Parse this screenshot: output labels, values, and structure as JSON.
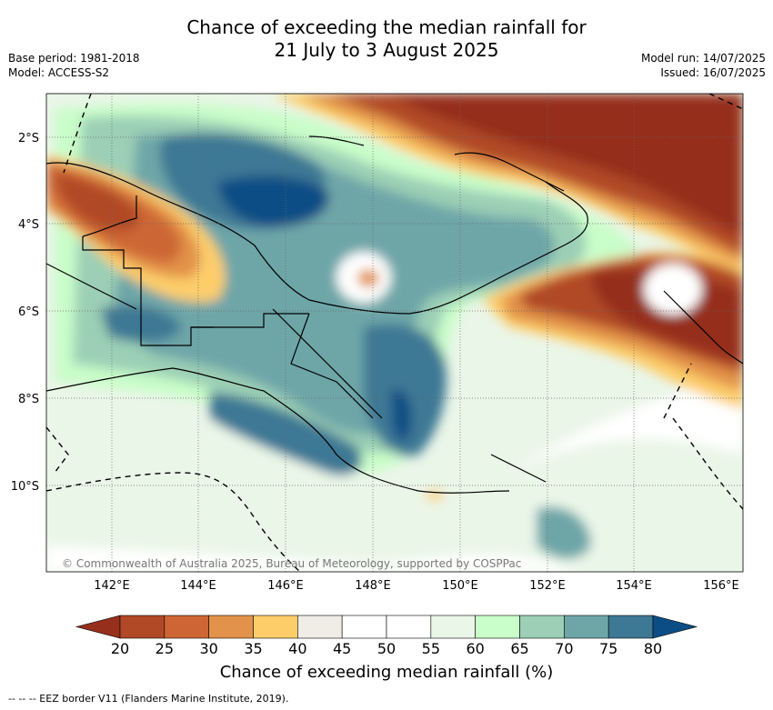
{
  "title": {
    "line1": "Chance of exceeding the median rainfall for",
    "line2": "21 July to 3 August 2025"
  },
  "meta": {
    "base_period": "Base period: 1981-2018",
    "model": "Model: ACCESS-S2",
    "model_run": "Model run: 14/07/2025",
    "issued": "Issued: 16/07/2025"
  },
  "axes": {
    "lat_labels": [
      "2°S",
      "4°S",
      "6°S",
      "8°S",
      "10°S"
    ],
    "lon_labels": [
      "142°E",
      "144°E",
      "146°E",
      "148°E",
      "150°E",
      "152°E",
      "154°E",
      "156°E"
    ]
  },
  "colorbar": {
    "ticks": [
      "20",
      "25",
      "30",
      "35",
      "40",
      "45",
      "50",
      "55",
      "60",
      "65",
      "70",
      "75",
      "80"
    ],
    "colors": [
      "#962f1c",
      "#b14826",
      "#cd6634",
      "#e2924a",
      "#fdcd6a",
      "#f0ece6",
      "#ffffff",
      "#ffffff",
      "#eaf6e8",
      "#c9fdc9",
      "#9ccfb5",
      "#6ea6a8",
      "#3d7894",
      "#0d4d85"
    ],
    "label": "Chance of exceeding median rainfall (%)"
  },
  "copyright": "© Commonwealth of Australia 2025, Bureau of Meteorology, supported by COSPPac",
  "footer": "--  --  -- EEZ border V11 (Flanders Marine Institute, 2019)."
}
